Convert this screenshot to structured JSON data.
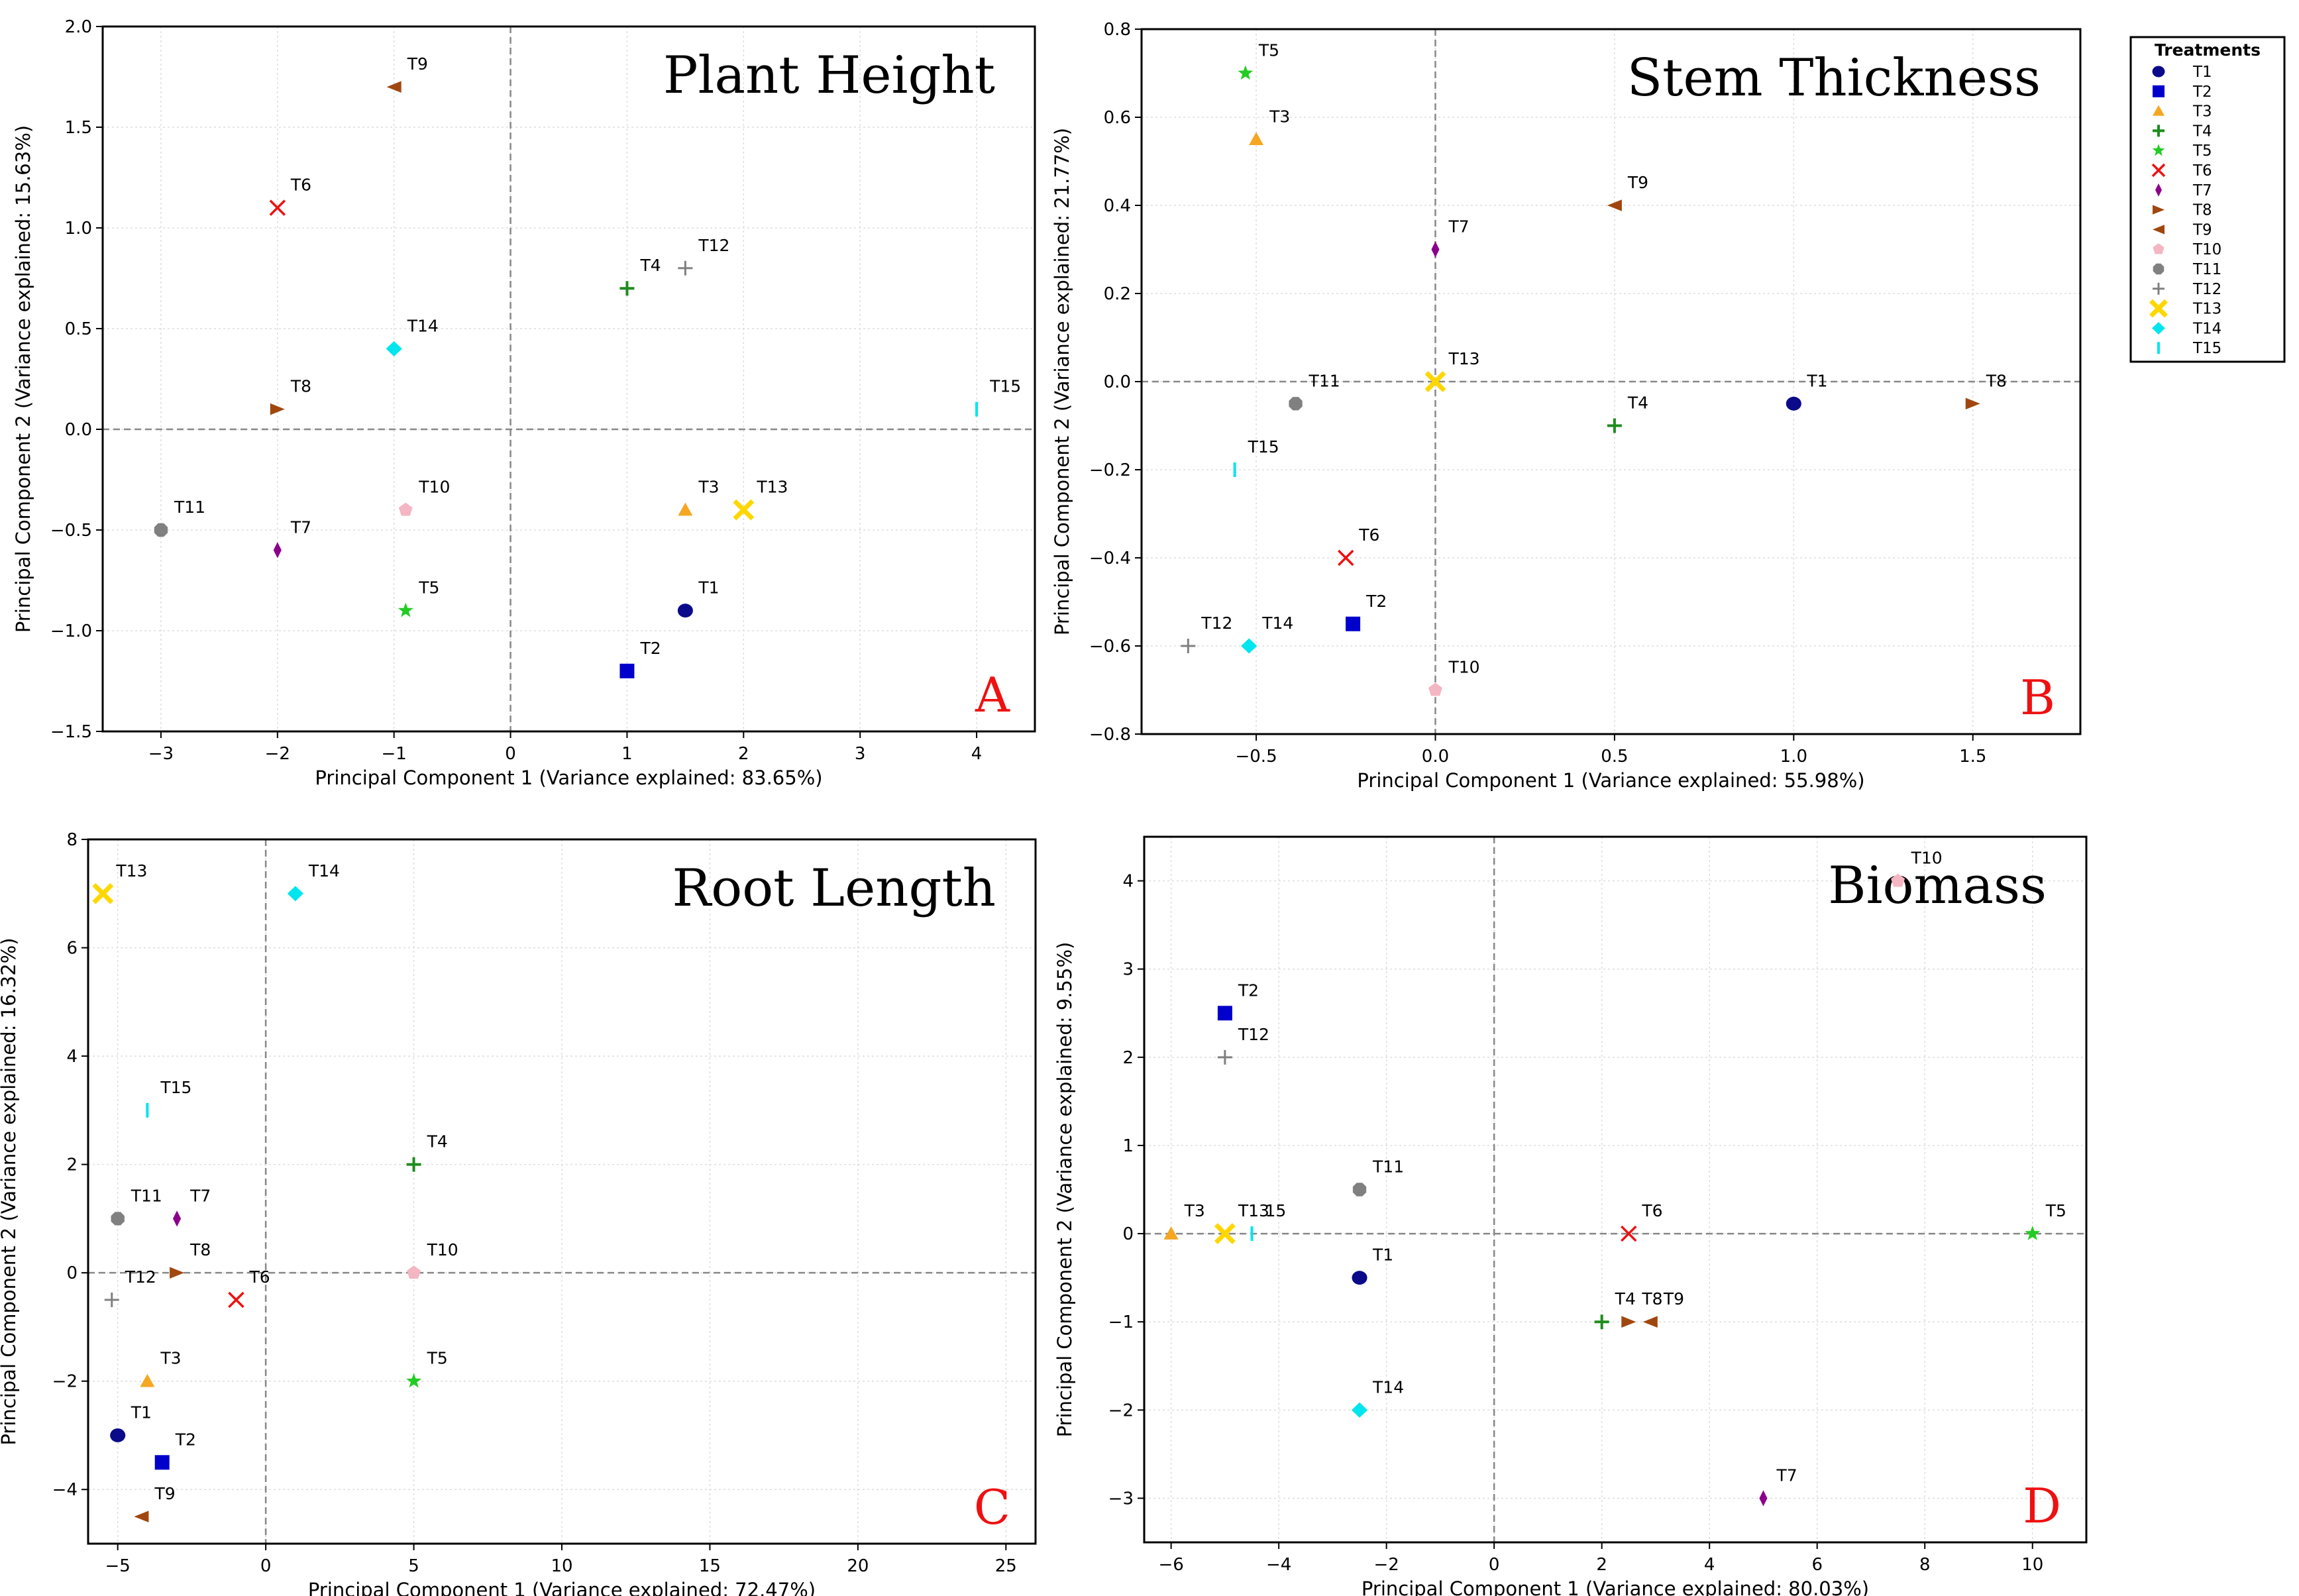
{
  "legend": {
    "title": "Treatments",
    "items": [
      {
        "label": "T1",
        "color": "#0a0a8a",
        "marker": "circle"
      },
      {
        "label": "T2",
        "color": "#0000cc",
        "marker": "square"
      },
      {
        "label": "T3",
        "color": "#f5a623",
        "marker": "triangle-up"
      },
      {
        "label": "T4",
        "color": "#1e8c1e",
        "marker": "plus"
      },
      {
        "label": "T5",
        "color": "#22cc22",
        "marker": "star"
      },
      {
        "label": "T6",
        "color": "#ee1111",
        "marker": "x"
      },
      {
        "label": "T7",
        "color": "#8b008b",
        "marker": "diamond-thin"
      },
      {
        "label": "T8",
        "color": "#a0470f",
        "marker": "triangle-right"
      },
      {
        "label": "T9",
        "color": "#a0470f",
        "marker": "triangle-left"
      },
      {
        "label": "T10",
        "color": "#f4b6c2",
        "marker": "pentagon"
      },
      {
        "label": "T11",
        "color": "#808080",
        "marker": "octagon"
      },
      {
        "label": "T12",
        "color": "#808080",
        "marker": "plus-thin"
      },
      {
        "label": "T13",
        "color": "#ffd700",
        "marker": "x-filled"
      },
      {
        "label": "T14",
        "color": "#00e5ee",
        "marker": "diamond"
      },
      {
        "label": "T15",
        "color": "#00e5ee",
        "marker": "vline"
      }
    ]
  },
  "chart_data": [
    {
      "type": "scatter",
      "title": "Plant Height",
      "panel_letter": "A",
      "xlabel": "Principal Component 1 (Variance explained: 83.65%)",
      "ylabel": "Principal Component 2 (Variance explained: 15.63%)",
      "xlim": [
        -3.5,
        4.5
      ],
      "ylim": [
        -1.5,
        2.0
      ],
      "xticks": [
        -3,
        -2,
        -1,
        0,
        1,
        2,
        3,
        4
      ],
      "yticks": [
        -1.5,
        -1.0,
        -0.5,
        0.0,
        0.5,
        1.0,
        1.5,
        2.0
      ],
      "xtick_labels": [
        "−3",
        "−2",
        "−1",
        "0",
        "1",
        "2",
        "3",
        "4"
      ],
      "ytick_labels": [
        "−1.5",
        "−1.0",
        "−0.5",
        "0.0",
        "0.5",
        "1.0",
        "1.5",
        "2.0"
      ],
      "points": [
        {
          "label": "T1",
          "x": 1.5,
          "y": -0.9
        },
        {
          "label": "T2",
          "x": 1.0,
          "y": -1.2
        },
        {
          "label": "T3",
          "x": 1.5,
          "y": -0.4
        },
        {
          "label": "T4",
          "x": 1.0,
          "y": 0.7
        },
        {
          "label": "T5",
          "x": -0.9,
          "y": -0.9
        },
        {
          "label": "T6",
          "x": -2.0,
          "y": 1.1
        },
        {
          "label": "T7",
          "x": -2.0,
          "y": -0.6
        },
        {
          "label": "T8",
          "x": -2.0,
          "y": 0.1
        },
        {
          "label": "T9",
          "x": -1.0,
          "y": 1.7
        },
        {
          "label": "T10",
          "x": -0.9,
          "y": -0.4
        },
        {
          "label": "T11",
          "x": -3.0,
          "y": -0.5
        },
        {
          "label": "T12",
          "x": 1.5,
          "y": 0.8
        },
        {
          "label": "T13",
          "x": 2.0,
          "y": -0.4
        },
        {
          "label": "T14",
          "x": -1.0,
          "y": 0.4
        },
        {
          "label": "T15",
          "x": 4.0,
          "y": 0.1
        }
      ]
    },
    {
      "type": "scatter",
      "title": "Stem Thickness",
      "panel_letter": "B",
      "xlabel": "Principal Component 1 (Variance explained: 55.98%)",
      "ylabel": "Principal Component 2 (Variance explained: 21.77%)",
      "xlim": [
        -0.82,
        1.8
      ],
      "ylim": [
        -0.8,
        0.8
      ],
      "xticks": [
        -0.5,
        0.0,
        0.5,
        1.0,
        1.5
      ],
      "yticks": [
        -0.8,
        -0.6,
        -0.4,
        -0.2,
        0.0,
        0.2,
        0.4,
        0.6,
        0.8
      ],
      "xtick_labels": [
        "−0.5",
        "0.0",
        "0.5",
        "1.0",
        "1.5"
      ],
      "ytick_labels": [
        "−0.8",
        "−0.6",
        "−0.4",
        "−0.2",
        "0.0",
        "0.2",
        "0.4",
        "0.6",
        "0.8"
      ],
      "points": [
        {
          "label": "T1",
          "x": 1.0,
          "y": -0.05
        },
        {
          "label": "T2",
          "x": -0.23,
          "y": -0.55
        },
        {
          "label": "T3",
          "x": -0.5,
          "y": 0.55
        },
        {
          "label": "T4",
          "x": 0.5,
          "y": -0.1
        },
        {
          "label": "T5",
          "x": -0.53,
          "y": 0.7
        },
        {
          "label": "T6",
          "x": -0.25,
          "y": -0.4
        },
        {
          "label": "T7",
          "x": 0.0,
          "y": 0.3
        },
        {
          "label": "T8",
          "x": 1.5,
          "y": -0.05
        },
        {
          "label": "T9",
          "x": 0.5,
          "y": 0.4
        },
        {
          "label": "T10",
          "x": 0.0,
          "y": -0.7
        },
        {
          "label": "T11",
          "x": -0.39,
          "y": -0.05
        },
        {
          "label": "T12",
          "x": -0.69,
          "y": -0.6
        },
        {
          "label": "T13",
          "x": 0.0,
          "y": 0.0
        },
        {
          "label": "T14",
          "x": -0.52,
          "y": -0.6
        },
        {
          "label": "T15",
          "x": -0.56,
          "y": -0.2
        }
      ]
    },
    {
      "type": "scatter",
      "title": "Root Length",
      "panel_letter": "C",
      "xlabel": "Principal Component 1 (Variance explained: 72.47%)",
      "ylabel": "Principal Component 2 (Variance explained: 16.32%)",
      "xlim": [
        -6,
        26
      ],
      "ylim": [
        -5,
        8
      ],
      "xticks": [
        -5,
        0,
        5,
        10,
        15,
        20,
        25
      ],
      "yticks": [
        -4,
        -2,
        0,
        2,
        4,
        6,
        8
      ],
      "xtick_labels": [
        "−5",
        "0",
        "5",
        "10",
        "15",
        "20",
        "25"
      ],
      "ytick_labels": [
        "−4",
        "−2",
        "0",
        "2",
        "4",
        "6",
        "8"
      ],
      "points": [
        {
          "label": "T1",
          "x": -5.0,
          "y": -3.0
        },
        {
          "label": "T2",
          "x": -3.5,
          "y": -3.5
        },
        {
          "label": "T3",
          "x": -4.0,
          "y": -2.0
        },
        {
          "label": "T4",
          "x": 5.0,
          "y": 2.0
        },
        {
          "label": "T5",
          "x": 5.0,
          "y": -2.0
        },
        {
          "label": "T6",
          "x": -1.0,
          "y": -0.5
        },
        {
          "label": "T7",
          "x": -3.0,
          "y": 1.0
        },
        {
          "label": "T8",
          "x": -3.0,
          "y": 0.0
        },
        {
          "label": "T9",
          "x": -4.2,
          "y": -4.5
        },
        {
          "label": "T10",
          "x": 5.0,
          "y": 0.0
        },
        {
          "label": "T11",
          "x": -5.0,
          "y": 1.0
        },
        {
          "label": "T12",
          "x": -5.2,
          "y": -0.5
        },
        {
          "label": "T13",
          "x": -5.5,
          "y": 7.0
        },
        {
          "label": "T14",
          "x": 1.0,
          "y": 7.0
        },
        {
          "label": "T15",
          "x": -4.0,
          "y": 3.0
        }
      ]
    },
    {
      "type": "scatter",
      "title": "Biomass",
      "panel_letter": "D",
      "xlabel": "Principal Component 1 (Variance explained: 80.03%)",
      "ylabel": "Principal Component 2 (Variance explained: 9.55%)",
      "xlim": [
        -6.5,
        11
      ],
      "ylim": [
        -3.5,
        4.5
      ],
      "xticks": [
        -6,
        -4,
        -2,
        0,
        2,
        4,
        6,
        8,
        10
      ],
      "yticks": [
        -3,
        -2,
        -1,
        0,
        1,
        2,
        3,
        4
      ],
      "xtick_labels": [
        "−6",
        "−4",
        "−2",
        "0",
        "2",
        "4",
        "6",
        "8",
        "10"
      ],
      "ytick_labels": [
        "−3",
        "−2",
        "−1",
        "0",
        "1",
        "2",
        "3",
        "4"
      ],
      "points": [
        {
          "label": "T1",
          "x": -2.5,
          "y": -0.5
        },
        {
          "label": "T2",
          "x": -5.0,
          "y": 2.5
        },
        {
          "label": "T3",
          "x": -6.0,
          "y": 0.0
        },
        {
          "label": "T4",
          "x": 2.0,
          "y": -1.0
        },
        {
          "label": "T5",
          "x": 10.0,
          "y": 0.0
        },
        {
          "label": "T6",
          "x": 2.5,
          "y": 0.0
        },
        {
          "label": "T7",
          "x": 5.0,
          "y": -3.0
        },
        {
          "label": "T8",
          "x": 2.5,
          "y": -1.0
        },
        {
          "label": "T9",
          "x": 2.9,
          "y": -1.0
        },
        {
          "label": "T10",
          "x": 7.5,
          "y": 4.0
        },
        {
          "label": "T11",
          "x": -2.5,
          "y": 0.5
        },
        {
          "label": "T12",
          "x": -5.0,
          "y": 2.0
        },
        {
          "label": "T13",
          "x": -5.0,
          "y": 0.0
        },
        {
          "label": "T14",
          "x": -2.5,
          "y": -2.0
        },
        {
          "label": "T15",
          "x": -4.5,
          "y": 0.0,
          "point_label": "15"
        }
      ]
    }
  ]
}
